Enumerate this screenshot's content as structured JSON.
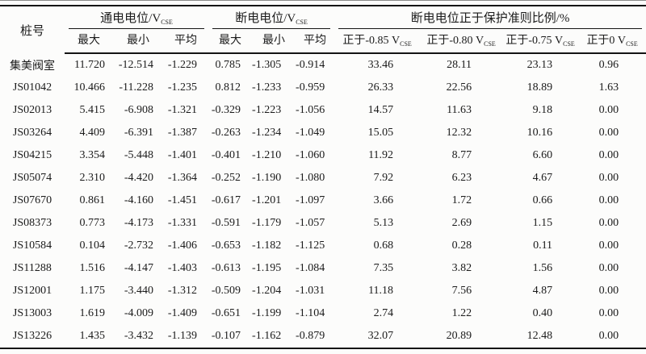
{
  "table": {
    "row_header_label": "桩号",
    "groups": [
      {
        "label": "通电电位/V",
        "sub": "CSE"
      },
      {
        "label": "断电电位/V",
        "sub": "CSE"
      },
      {
        "label": "断电电位正于保护准则比例/%"
      }
    ],
    "subheaders": [
      {
        "label": "最大"
      },
      {
        "label": "最小"
      },
      {
        "label": "平均"
      },
      {
        "label": "最大"
      },
      {
        "label": "最小"
      },
      {
        "label": "平均"
      },
      {
        "label": "正于-0.85 V",
        "sub": "CSE"
      },
      {
        "label": "正于-0.80 V",
        "sub": "CSE"
      },
      {
        "label": "正于-0.75 V",
        "sub": "CSE"
      },
      {
        "label": "正于0 V",
        "sub": "CSE"
      }
    ],
    "rows": [
      {
        "pile": "集美阀室",
        "values": [
          "11.720",
          "-12.514",
          "-1.229",
          "0.785",
          "-1.305",
          "-0.914",
          "33.46",
          "28.11",
          "23.13",
          "0.96"
        ]
      },
      {
        "pile": "JS01042",
        "values": [
          "10.466",
          "-11.228",
          "-1.235",
          "0.812",
          "-1.233",
          "-0.959",
          "26.33",
          "22.56",
          "18.89",
          "1.63"
        ]
      },
      {
        "pile": "JS02013",
        "values": [
          "5.415",
          "-6.908",
          "-1.321",
          "-0.329",
          "-1.223",
          "-1.056",
          "14.57",
          "11.63",
          "9.18",
          "0.00"
        ]
      },
      {
        "pile": "JS03264",
        "values": [
          "4.409",
          "-6.391",
          "-1.387",
          "-0.263",
          "-1.234",
          "-1.049",
          "15.05",
          "12.32",
          "10.16",
          "0.00"
        ]
      },
      {
        "pile": "JS04215",
        "values": [
          "3.354",
          "-5.448",
          "-1.401",
          "-0.401",
          "-1.210",
          "-1.060",
          "11.92",
          "8.77",
          "6.60",
          "0.00"
        ]
      },
      {
        "pile": "JS05074",
        "values": [
          "2.310",
          "-4.420",
          "-1.364",
          "-0.252",
          "-1.190",
          "-1.080",
          "7.92",
          "6.23",
          "4.67",
          "0.00"
        ]
      },
      {
        "pile": "JS07670",
        "values": [
          "0.861",
          "-4.160",
          "-1.451",
          "-0.617",
          "-1.201",
          "-1.097",
          "3.66",
          "1.72",
          "0.66",
          "0.00"
        ]
      },
      {
        "pile": "JS08373",
        "values": [
          "0.773",
          "-4.173",
          "-1.331",
          "-0.591",
          "-1.179",
          "-1.057",
          "5.13",
          "2.69",
          "1.15",
          "0.00"
        ]
      },
      {
        "pile": "JS10584",
        "values": [
          "0.104",
          "-2.732",
          "-1.406",
          "-0.653",
          "-1.182",
          "-1.125",
          "0.68",
          "0.28",
          "0.11",
          "0.00"
        ]
      },
      {
        "pile": "JS11288",
        "values": [
          "1.516",
          "-4.147",
          "-1.403",
          "-0.613",
          "-1.195",
          "-1.084",
          "7.35",
          "3.82",
          "1.56",
          "0.00"
        ]
      },
      {
        "pile": "JS12001",
        "values": [
          "1.175",
          "-3.440",
          "-1.312",
          "-0.509",
          "-1.204",
          "-1.031",
          "11.18",
          "7.56",
          "4.87",
          "0.00"
        ]
      },
      {
        "pile": "JS13003",
        "values": [
          "1.619",
          "-4.009",
          "-1.409",
          "-0.651",
          "-1.199",
          "-1.104",
          "2.74",
          "1.22",
          "0.40",
          "0.00"
        ]
      },
      {
        "pile": "JS13226",
        "values": [
          "1.435",
          "-3.432",
          "-1.139",
          "-0.107",
          "-1.162",
          "-0.879",
          "32.07",
          "20.89",
          "12.48",
          "0.00"
        ]
      }
    ]
  }
}
